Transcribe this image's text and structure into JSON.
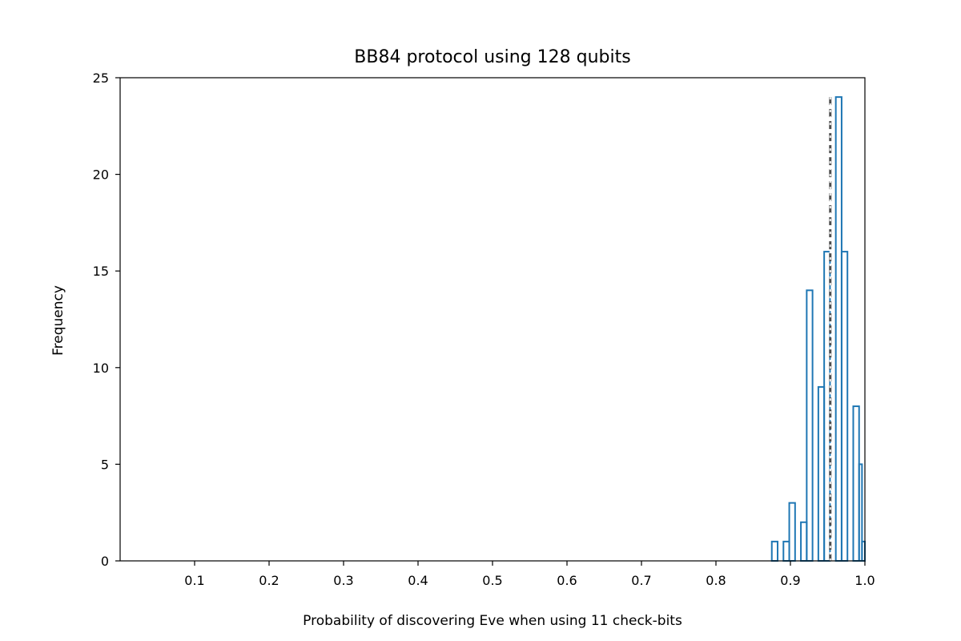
{
  "chart_data": {
    "type": "histogram",
    "title": "BB84 protocol using 128 qubits",
    "xlabel": "Probability of discovering Eve when using 11 check-bits",
    "ylabel": "Frequency",
    "xlim": [
      0.0,
      1.0
    ],
    "ylim": [
      0,
      25
    ],
    "xticks": [
      "0.1",
      "0.2",
      "0.3",
      "0.4",
      "0.5",
      "0.6",
      "0.7",
      "0.8",
      "0.9",
      "1.0"
    ],
    "yticks": [
      "0",
      "5",
      "10",
      "15",
      "20",
      "25"
    ],
    "bin_width": 0.0078125,
    "bins": [
      {
        "x0": 0.875,
        "count": 1
      },
      {
        "x0": 0.8828125,
        "count": 0
      },
      {
        "x0": 0.890625,
        "count": 1
      },
      {
        "x0": 0.8984375,
        "count": 3
      },
      {
        "x0": 0.90625,
        "count": 0
      },
      {
        "x0": 0.9140625,
        "count": 2
      },
      {
        "x0": 0.921875,
        "count": 14
      },
      {
        "x0": 0.9296875,
        "count": 0
      },
      {
        "x0": 0.9375,
        "count": 9
      },
      {
        "x0": 0.9453125,
        "count": 16
      },
      {
        "x0": 0.953125,
        "count": 0
      },
      {
        "x0": 0.9609375,
        "count": 24
      },
      {
        "x0": 0.96875,
        "count": 16
      },
      {
        "x0": 0.9765625,
        "count": 0
      },
      {
        "x0": 0.984375,
        "count": 8
      },
      {
        "x0": 0.9921875,
        "count": 5
      },
      {
        "x0": 0.99609375,
        "count": 1
      }
    ],
    "reference_lines": [
      {
        "x": 0.9535,
        "style": "dashed",
        "color": "#4d4d4d"
      },
      {
        "x": 0.9535,
        "style": "dotted",
        "color": "#ffffff"
      }
    ],
    "series_color": "#1f77b4",
    "grid": false
  }
}
